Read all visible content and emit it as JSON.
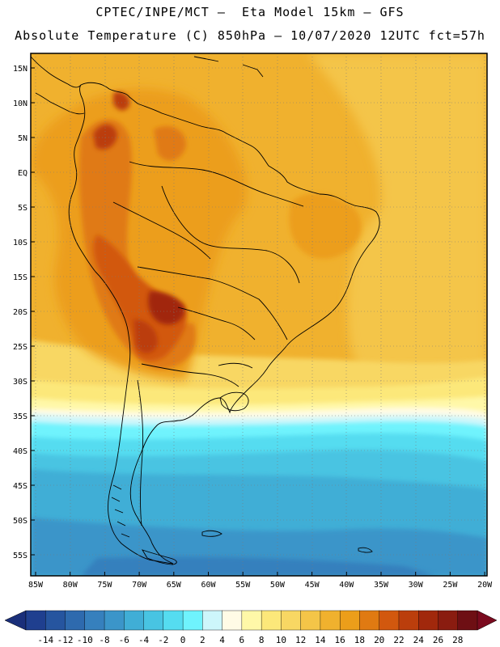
{
  "header": {
    "line1": "CPTEC/INPE/MCT –  Eta Model 15km – GFS",
    "line2": "Absolute Temperature (C) 850hPa – 10/07/2020 12UTC fct=57h"
  },
  "axes": {
    "lat_labels": [
      "15N",
      "10N",
      "5N",
      "EQ",
      "5S",
      "10S",
      "15S",
      "20S",
      "25S",
      "30S",
      "35S",
      "40S",
      "45S",
      "50S",
      "55S"
    ],
    "lon_labels": [
      "85W",
      "80W",
      "75W",
      "70W",
      "65W",
      "60W",
      "55W",
      "50W",
      "45W",
      "40W",
      "35W",
      "30W",
      "25W",
      "20W"
    ]
  },
  "colorbar": {
    "labels": [
      "-14",
      "-12",
      "-10",
      "-8",
      "-6",
      "-4",
      "-2",
      "0",
      "2",
      "4",
      "6",
      "8",
      "10",
      "12",
      "14",
      "16",
      "18",
      "20",
      "22",
      "24",
      "26",
      "28"
    ],
    "colors": [
      "#1f3f8f",
      "#26559f",
      "#2e6aae",
      "#3680bd",
      "#3b95c9",
      "#40aed6",
      "#48c4e2",
      "#55dcf0",
      "#6ff3fd",
      "#cdf6fb",
      "#fffbe6",
      "#fff8a8",
      "#fce87a",
      "#f8d763",
      "#f4c548",
      "#f0b12e",
      "#ec9e1a",
      "#e07a12",
      "#d2580e",
      "#bb3e0c",
      "#a1280c",
      "#8a1c10",
      "#6e0f14"
    ],
    "low_arrow_color": "#1a2f7a",
    "high_arrow_color": "#7a0a1e"
  }
}
